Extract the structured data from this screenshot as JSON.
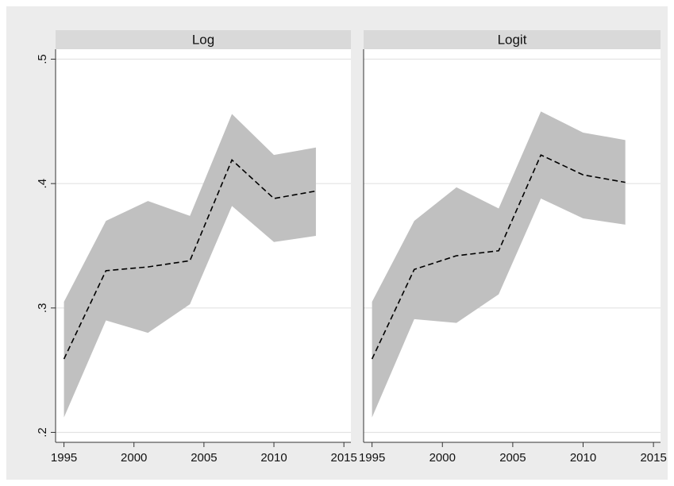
{
  "chart_data": [
    {
      "type": "line",
      "title": "Log",
      "x": [
        1995,
        1998,
        2001,
        2004,
        2007,
        2010,
        2013
      ],
      "series": [
        {
          "color": "#000000",
          "dash": true,
          "values": [
            0.259,
            0.33,
            0.333,
            0.338,
            0.419,
            0.388,
            0.394
          ]
        }
      ],
      "band": {
        "color": "#c0c0c0",
        "upper": [
          0.305,
          0.37,
          0.386,
          0.374,
          0.456,
          0.423,
          0.429
        ],
        "lower": [
          0.212,
          0.29,
          0.28,
          0.303,
          0.382,
          0.353,
          0.358
        ]
      },
      "xlim": [
        1994.4,
        2015.5
      ],
      "xticks": [
        1995,
        2000,
        2005,
        2010,
        2015
      ],
      "ylim": [
        0.192,
        0.508
      ],
      "yticks": [
        {
          "value": 0.2,
          "label": ".2"
        },
        {
          "value": 0.3,
          "label": ".3"
        },
        {
          "value": 0.4,
          "label": ".4"
        },
        {
          "value": 0.5,
          "label": ".5"
        }
      ],
      "grid": true
    },
    {
      "type": "line",
      "title": "Logit",
      "x": [
        1995,
        1998,
        2001,
        2004,
        2007,
        2010,
        2013
      ],
      "series": [
        {
          "color": "#000000",
          "dash": true,
          "values": [
            0.259,
            0.331,
            0.342,
            0.346,
            0.423,
            0.407,
            0.401
          ]
        }
      ],
      "band": {
        "color": "#c0c0c0",
        "upper": [
          0.305,
          0.37,
          0.397,
          0.38,
          0.458,
          0.441,
          0.435
        ],
        "lower": [
          0.212,
          0.291,
          0.288,
          0.311,
          0.388,
          0.372,
          0.367
        ]
      },
      "xlim": [
        1994.4,
        2015.5
      ],
      "xticks": [
        1995,
        2000,
        2005,
        2010,
        2015
      ],
      "ylim": [
        0.192,
        0.508
      ],
      "yticks": [
        {
          "value": 0.2,
          "label": ".2"
        },
        {
          "value": 0.3,
          "label": ".3"
        },
        {
          "value": 0.4,
          "label": ".4"
        },
        {
          "value": 0.5,
          "label": ".5"
        }
      ],
      "grid": true
    }
  ]
}
